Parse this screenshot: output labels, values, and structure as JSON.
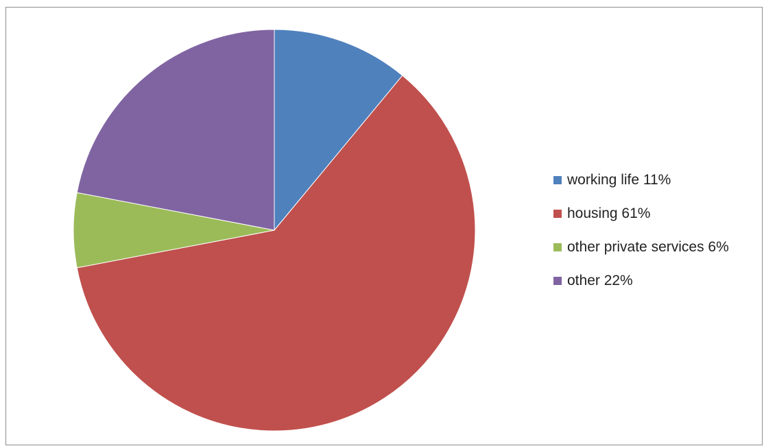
{
  "chart_data": {
    "type": "pie",
    "slices": [
      {
        "label": "working life 11%",
        "value": 11,
        "color": "#4f81bd"
      },
      {
        "label": "housing 61%",
        "value": 61,
        "color": "#c0504d"
      },
      {
        "label": "other private services 6%",
        "value": 6,
        "color": "#9bbb59"
      },
      {
        "label": "other 22%",
        "value": 22,
        "color": "#8064a2"
      }
    ],
    "start_angle": "12 o'clock",
    "direction": "clockwise",
    "legend_position": "right"
  }
}
